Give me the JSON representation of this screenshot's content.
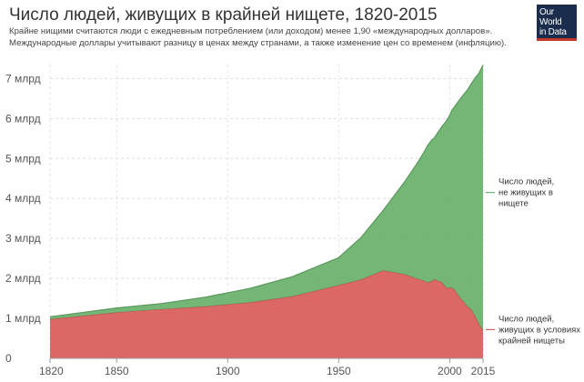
{
  "header": {
    "title": "Число людей, живущих в крайней нищете, 1820-2015",
    "subtitle_lines": [
      "Крайне нищими считаются люди с ежедневным потреблением (или доходом) менее 1,90 «международных долларов».",
      "Международные доллары учитывают разницу в ценах между странами, а также изменение цен со временем (инфляцию)."
    ],
    "logo_lines": [
      "Our World",
      "in Data"
    ]
  },
  "chart_data": {
    "type": "area",
    "stacked": true,
    "x": [
      1820,
      1850,
      1870,
      1890,
      1910,
      1929,
      1950,
      1960,
      1970,
      1975,
      1980,
      1985,
      1988,
      1990,
      1992,
      1993,
      1995,
      1996,
      1997,
      1998,
      1999,
      2000,
      2001,
      2002,
      2003,
      2005,
      2008,
      2010,
      2012,
      2013,
      2015
    ],
    "series": [
      {
        "name": "Число людей, живущих в условиях крайней нищеты",
        "color": "#d9605e",
        "values": [
          0.98,
          1.15,
          1.23,
          1.3,
          1.4,
          1.55,
          1.83,
          1.97,
          2.2,
          2.15,
          2.1,
          2.0,
          1.95,
          1.9,
          1.93,
          1.98,
          1.93,
          1.92,
          1.87,
          1.8,
          1.75,
          1.78,
          1.76,
          1.73,
          1.65,
          1.5,
          1.3,
          1.2,
          1.0,
          0.88,
          0.7
        ]
      },
      {
        "name": "Число людей, не живущих в нищете",
        "color": "#6cb26f",
        "values": [
          0.06,
          0.11,
          0.14,
          0.23,
          0.35,
          0.49,
          0.69,
          1.05,
          1.5,
          1.92,
          2.34,
          2.85,
          3.17,
          3.42,
          3.54,
          3.53,
          3.75,
          3.84,
          3.97,
          4.1,
          4.24,
          4.3,
          4.45,
          4.55,
          4.71,
          5.01,
          5.42,
          5.7,
          6.06,
          6.24,
          6.64
        ]
      }
    ],
    "legend_labels": [
      [
        "Число людей,",
        "не живущих в",
        "нищете"
      ],
      [
        "Число людей,",
        "живущих в условиях",
        "крайней нищеты"
      ]
    ],
    "y_ticks": [
      0,
      1,
      2,
      3,
      4,
      5,
      6,
      7
    ],
    "y_tick_labels": [
      "0",
      "1 млрд",
      "2 млрд",
      "3 млрд",
      "4 млрд",
      "5 млрд",
      "6 млрд",
      "7 млрд"
    ],
    "x_ticks": [
      1820,
      1850,
      1900,
      1950,
      2000,
      2015
    ],
    "x_tick_labels": [
      "1820",
      "1850",
      "1900",
      "1950",
      "2000",
      "2015"
    ],
    "xlim": [
      1820,
      2015
    ],
    "ylim": [
      0,
      7.5
    ],
    "grid": true,
    "legend_position": "right"
  }
}
